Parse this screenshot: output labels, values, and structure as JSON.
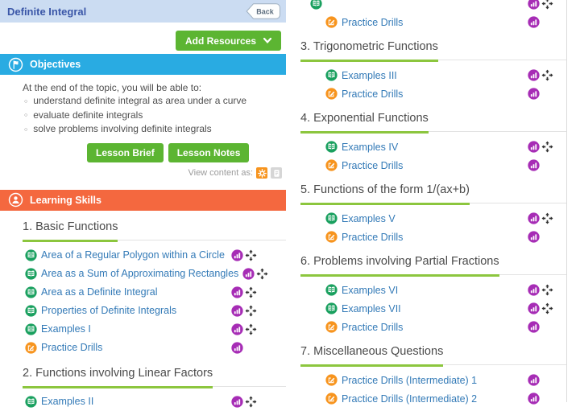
{
  "colors": {
    "topbar_bg": "#cbdcf2",
    "topbar_text": "#3b57a8",
    "button_green": "#5cb532",
    "underline_green": "#8cc63e",
    "objectives_blue": "#29abe2",
    "skills_orange": "#f4683f",
    "link_blue": "#337ab7",
    "book_icon_green": "#1aa05f",
    "pencil_icon_orange": "#f7941e",
    "stats_icon_purple": "#a62cb5",
    "view_interactive_orange": "#f7941e",
    "view_document_gray": "#d6d6d6"
  },
  "header": {
    "title": "Definite Integral",
    "back_label": "Back"
  },
  "toolbar": {
    "add_resources_label": "Add Resources",
    "chevron_icon": "chevron-down-icon"
  },
  "objectives": {
    "title": "Objectives",
    "icon": "flag-icon",
    "intro": "At the end of the topic, you will be able to:",
    "bullets": [
      "understand definite integral as area under a curve",
      "evaluate definite integrals",
      "solve problems involving definite integrals"
    ]
  },
  "lesson_buttons": {
    "brief": "Lesson Brief",
    "notes": "Lesson Notes"
  },
  "view_as": {
    "label": "View content as:",
    "options": [
      {
        "icon": "interactive-view-icon",
        "color": "#f7941e"
      },
      {
        "icon": "document-view-icon",
        "color": "#d6d6d6"
      }
    ]
  },
  "skills": {
    "title": "Learning Skills",
    "icon": "learner-icon"
  },
  "left_column": {
    "sections": [
      {
        "title": "1. Basic Functions",
        "items": [
          {
            "label": "Area of a Regular Polygon within a Circle",
            "icon": "book",
            "actions": [
              "stats",
              "move"
            ]
          },
          {
            "label": "Area as a Sum of Approximating Rectangles",
            "icon": "book",
            "actions": [
              "stats",
              "move"
            ]
          },
          {
            "label": "Area as a Definite Integral",
            "icon": "book",
            "actions": [
              "stats",
              "move"
            ]
          },
          {
            "label": "Properties of Definite Integrals",
            "icon": "book",
            "actions": [
              "stats",
              "move"
            ]
          },
          {
            "label": "Examples I",
            "icon": "book",
            "actions": [
              "stats",
              "move"
            ]
          },
          {
            "label": "Practice Drills",
            "icon": "pencil",
            "actions": [
              "stats"
            ]
          }
        ]
      },
      {
        "title": "2. Functions involving Linear Factors",
        "items": [
          {
            "label": "Examples II",
            "icon": "book",
            "actions": [
              "stats",
              "move"
            ]
          }
        ]
      }
    ]
  },
  "right_column": {
    "top_items": [
      {
        "label": "",
        "icon": "book",
        "actions": [
          "stats",
          "move"
        ],
        "truncated": true
      },
      {
        "label": "Practice Drills",
        "icon": "pencil",
        "actions": [
          "stats"
        ]
      }
    ],
    "sections": [
      {
        "title": "3. Trigonometric Functions",
        "items": [
          {
            "label": "Examples III",
            "icon": "book",
            "actions": [
              "stats",
              "move"
            ]
          },
          {
            "label": "Practice Drills",
            "icon": "pencil",
            "actions": [
              "stats"
            ]
          }
        ]
      },
      {
        "title": "4. Exponential Functions",
        "items": [
          {
            "label": "Examples IV",
            "icon": "book",
            "actions": [
              "stats",
              "move"
            ]
          },
          {
            "label": "Practice Drills",
            "icon": "pencil",
            "actions": [
              "stats"
            ]
          }
        ]
      },
      {
        "title": "5. Functions of the form 1/(ax+b)",
        "items": [
          {
            "label": "Examples V",
            "icon": "book",
            "actions": [
              "stats",
              "move"
            ]
          },
          {
            "label": "Practice Drills",
            "icon": "pencil",
            "actions": [
              "stats"
            ]
          }
        ]
      },
      {
        "title": "6. Problems involving Partial Fractions",
        "items": [
          {
            "label": "Examples VI",
            "icon": "book",
            "actions": [
              "stats",
              "move"
            ]
          },
          {
            "label": "Examples VII",
            "icon": "book",
            "actions": [
              "stats",
              "move"
            ]
          },
          {
            "label": "Practice Drills",
            "icon": "pencil",
            "actions": [
              "stats"
            ]
          }
        ]
      },
      {
        "title": "7. Miscellaneous Questions",
        "items": [
          {
            "label": "Practice Drills (Intermediate) 1",
            "icon": "pencil",
            "actions": [
              "stats"
            ]
          },
          {
            "label": "Practice Drills (Intermediate) 2",
            "icon": "pencil",
            "actions": [
              "stats"
            ]
          }
        ]
      }
    ]
  }
}
